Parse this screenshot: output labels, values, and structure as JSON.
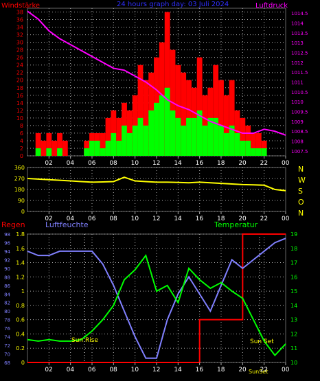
{
  "top": {
    "left_title": "Windstärke",
    "center_title": "24 hours graph day: 03 Juli 2024",
    "right_title": "Luftdruck",
    "left_ticks": [
      "0",
      "2",
      "4",
      "6",
      "8",
      "10",
      "12",
      "14",
      "16",
      "18",
      "20",
      "22",
      "24",
      "26",
      "28",
      "30",
      "32",
      "34",
      "36",
      "38"
    ],
    "right_ticks": [
      "1007.5",
      "1008",
      "1008.5",
      "1009",
      "1009.5",
      "1010",
      "1010.5",
      "1011",
      "1011.5",
      "1012",
      "1012.5",
      "1013",
      "1013.5",
      "1014",
      "1014.5"
    ],
    "x_ticks": [
      "02",
      "04",
      "06",
      "08",
      "10",
      "12",
      "14",
      "16",
      "18",
      "20",
      "22",
      "00"
    ]
  },
  "middle": {
    "left_ticks": [
      "0",
      "90",
      "180",
      "270",
      "360"
    ],
    "compass": [
      "N",
      "W",
      "S",
      "O",
      "N"
    ],
    "x_ticks": [
      "02",
      "04",
      "06",
      "08",
      "10",
      "12",
      "14",
      "16",
      "18",
      "20",
      "22",
      "00"
    ]
  },
  "bottom": {
    "rain_label": "Regen",
    "humidity_label": "Luftfeuchte",
    "temperature_label": "Temperatur",
    "rain_ticks": [
      "0",
      "0.2",
      "0.4",
      "0.6",
      "0.8",
      "1",
      "1.2",
      "1.4",
      "1.6",
      "1.8"
    ],
    "humidity_ticks": [
      "68",
      "70",
      "72",
      "74",
      "76",
      "78",
      "80",
      "82",
      "84",
      "86",
      "88",
      "90",
      "92",
      "94",
      "96",
      "98"
    ],
    "temp_ticks": [
      "10",
      "11",
      "12",
      "13",
      "14",
      "15",
      "16",
      "17",
      "18",
      "19"
    ],
    "x_ticks": [
      "02",
      "04",
      "06",
      "08",
      "10",
      "12",
      "14",
      "16",
      "18",
      "20",
      "22",
      "00"
    ],
    "sunrise_label": "Sun Rise",
    "sunset_label": "Sun Set",
    "sunset_time": "SunSet"
  },
  "colors": {
    "wind_gust": "#ff0000",
    "wind_avg": "#00ff00",
    "pressure": "#ff00ff",
    "direction": "#ffff00",
    "rain": "#ff0000",
    "humidity": "#8080ff",
    "temperature": "#00ff00",
    "grid": "#b0b0b0"
  },
  "chart_data": [
    {
      "type": "bar",
      "title": "24 hours graph day: 03 Juli 2024",
      "x_range_hours": [
        0,
        24
      ],
      "series": [
        {
          "name": "Windstärke",
          "x": [
            1,
            1.5,
            2,
            2.5,
            3,
            3.5,
            5.5,
            6,
            6.5,
            7,
            7.5,
            8,
            8.5,
            9,
            9.5,
            10,
            10.5,
            11,
            11.5,
            12,
            12.5,
            13,
            13.5,
            14,
            14.5,
            15,
            15.5,
            16,
            16.5,
            17,
            17.5,
            18,
            18.5,
            19,
            19.5,
            20,
            20.5,
            21,
            21.5,
            22
          ],
          "gust": [
            6,
            4,
            6,
            4,
            6,
            4,
            4,
            6,
            6,
            6,
            10,
            12,
            10,
            14,
            12,
            16,
            24,
            20,
            22,
            26,
            30,
            38,
            28,
            24,
            22,
            20,
            18,
            26,
            16,
            18,
            24,
            20,
            16,
            20,
            12,
            10,
            8,
            6,
            6,
            4
          ],
          "avg": [
            2,
            0,
            2,
            0,
            2,
            0,
            2,
            4,
            4,
            2,
            4,
            6,
            4,
            8,
            6,
            8,
            10,
            8,
            12,
            14,
            16,
            18,
            12,
            10,
            8,
            10,
            10,
            12,
            8,
            10,
            10,
            8,
            6,
            8,
            6,
            4,
            4,
            2,
            2,
            2
          ]
        },
        {
          "name": "Luftdruck",
          "x": [
            0,
            1,
            2,
            3,
            4,
            5,
            6,
            7,
            8,
            9,
            10,
            11,
            12,
            13,
            14,
            15,
            16,
            17,
            18,
            19,
            20,
            21,
            22,
            23,
            24
          ],
          "values": [
            1014.6,
            1014.2,
            1013.6,
            1013.2,
            1012.9,
            1012.6,
            1012.3,
            1012.0,
            1011.7,
            1011.6,
            1011.3,
            1011.0,
            1010.6,
            1010.1,
            1009.8,
            1009.6,
            1009.3,
            1009.0,
            1008.8,
            1008.6,
            1008.4,
            1008.4,
            1008.6,
            1008.5,
            1008.3
          ]
        }
      ],
      "ylim_left": [
        0,
        39
      ],
      "ylim_right": [
        1007.25,
        1014.75
      ]
    },
    {
      "type": "line",
      "x": [
        0,
        1,
        2,
        3,
        4,
        5,
        6,
        7,
        8,
        9,
        10,
        11,
        12,
        13,
        14,
        15,
        16,
        17,
        18,
        19,
        20,
        21,
        22,
        23,
        24
      ],
      "series": [
        {
          "name": "N W S O N",
          "values": [
            270,
            265,
            260,
            255,
            250,
            245,
            240,
            242,
            245,
            280,
            250,
            245,
            240,
            240,
            238,
            235,
            240,
            235,
            230,
            225,
            220,
            218,
            215,
            180,
            170
          ]
        }
      ],
      "ylim": [
        0,
        360
      ]
    },
    {
      "type": "line",
      "x": [
        0,
        1,
        2,
        3,
        4,
        5,
        6,
        7,
        8,
        9,
        10,
        11,
        12,
        13,
        14,
        15,
        16,
        17,
        18,
        19,
        20,
        21,
        22,
        23,
        24
      ],
      "series": [
        {
          "name": "Regen",
          "axis": "rain",
          "values": [
            0,
            0,
            0,
            0,
            0,
            0,
            0,
            0,
            0,
            0,
            0,
            0,
            0,
            0,
            0,
            0,
            0.6,
            0.6,
            0.6,
            0.6,
            1.8,
            1.8,
            1.8,
            1.8,
            1.8
          ]
        },
        {
          "name": "Luftfeuchte",
          "axis": "humidity",
          "values": [
            94,
            93,
            93,
            94,
            94,
            94,
            94,
            91,
            86,
            80,
            74,
            69,
            69,
            78,
            84,
            88,
            84,
            80,
            86,
            92,
            90,
            92,
            94,
            96,
            97
          ]
        },
        {
          "name": "Temperatur",
          "axis": "temperature",
          "values": [
            11.6,
            11.5,
            11.6,
            11.5,
            11.5,
            11.6,
            12.2,
            13.0,
            14.0,
            15.8,
            16.5,
            17.5,
            15.0,
            15.4,
            14.2,
            16.6,
            15.8,
            15.2,
            15.6,
            15.0,
            14.5,
            13.0,
            11.5,
            10.5,
            11.3
          ]
        }
      ],
      "ylim_rain": [
        0,
        1.8
      ],
      "ylim_humidity": [
        68,
        98
      ],
      "ylim_temperature": [
        10,
        19
      ]
    }
  ]
}
